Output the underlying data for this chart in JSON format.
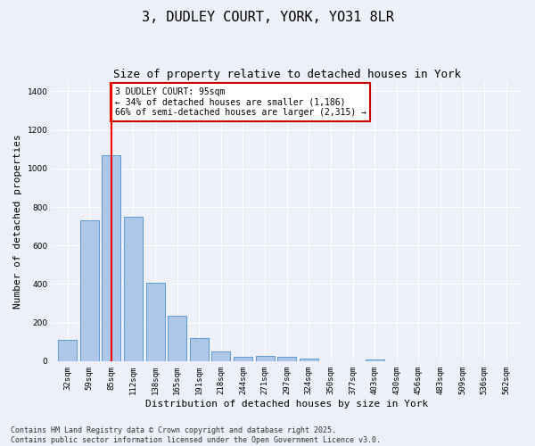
{
  "title_line1": "3, DUDLEY COURT, YORK, YO31 8LR",
  "title_line2": "Size of property relative to detached houses in York",
  "xlabel": "Distribution of detached houses by size in York",
  "ylabel": "Number of detached properties",
  "categories": [
    "32sqm",
    "59sqm",
    "85sqm",
    "112sqm",
    "138sqm",
    "165sqm",
    "191sqm",
    "218sqm",
    "244sqm",
    "271sqm",
    "297sqm",
    "324sqm",
    "350sqm",
    "377sqm",
    "403sqm",
    "430sqm",
    "456sqm",
    "483sqm",
    "509sqm",
    "536sqm",
    "562sqm"
  ],
  "values": [
    110,
    730,
    1070,
    750,
    405,
    237,
    120,
    50,
    22,
    28,
    22,
    15,
    0,
    0,
    10,
    0,
    0,
    0,
    0,
    0,
    0
  ],
  "bar_color": "#aec6e8",
  "bar_edge_color": "#5b9bd5",
  "red_line_x": 2,
  "annotation_text": "3 DUDLEY COURT: 95sqm\n← 34% of detached houses are smaller (1,186)\n66% of semi-detached houses are larger (2,315) →",
  "annotation_box_color": "#ffffff",
  "annotation_box_edge": "#cc0000",
  "ylim": [
    0,
    1450
  ],
  "yticks": [
    0,
    200,
    400,
    600,
    800,
    1000,
    1200,
    1400
  ],
  "bg_color": "#edf0f8",
  "grid_color": "#ffffff",
  "footer": "Contains HM Land Registry data © Crown copyright and database right 2025.\nContains public sector information licensed under the Open Government Licence v3.0.",
  "title_fontsize": 11,
  "subtitle_fontsize": 9,
  "axis_label_fontsize": 8,
  "tick_fontsize": 6.5,
  "annotation_fontsize": 7,
  "footer_fontsize": 6
}
